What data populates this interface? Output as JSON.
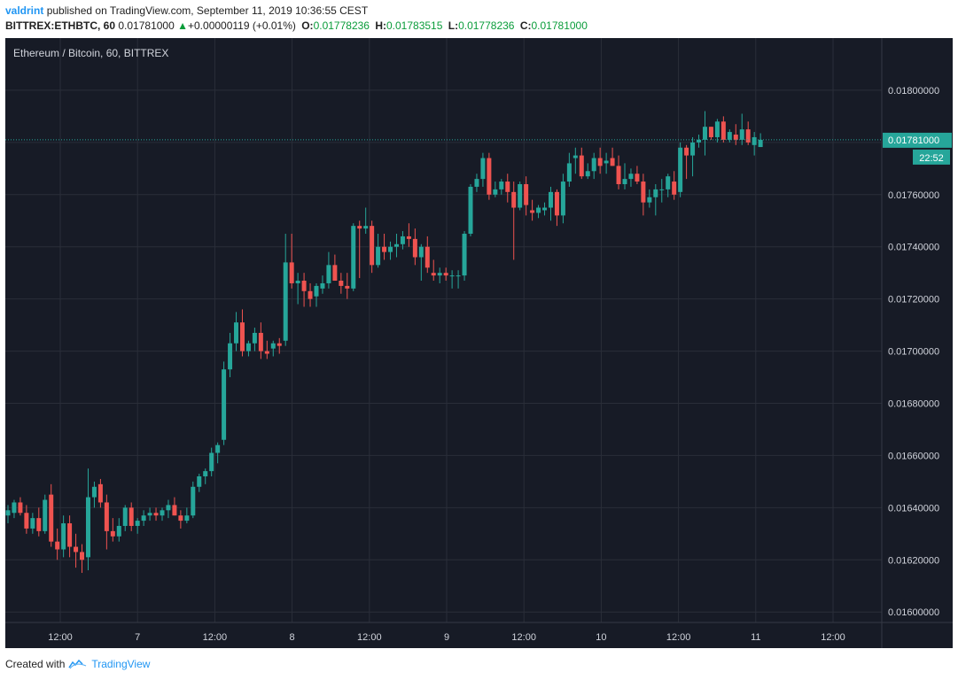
{
  "header": {
    "user": "valdrint",
    "published_text": "published on TradingView.com, September 11, 2019 10:36:55 CEST",
    "symbol": "BITTREX:ETHBTC, 60",
    "last": "0.01781000",
    "change": "+0.00000119 (+0.01%)",
    "o_label": "O:",
    "o_value": "0.01778236",
    "h_label": "H:",
    "h_value": "0.01783515",
    "l_label": "L:",
    "l_value": "0.01778236",
    "c_label": "C:",
    "c_value": "0.01781000"
  },
  "footer": {
    "created_with": "Created with",
    "brand": "TradingView"
  },
  "colors": {
    "background": "#171b26",
    "grid": "#2a2e39",
    "up": "#26a69a",
    "down": "#ef5350",
    "text": "#d1d4dc",
    "price_tag": "#26a69a"
  },
  "chart_data": {
    "type": "candlestick",
    "title": "Ethereum / Bitcoin, 60, BITTREX",
    "ylim": [
      0.01596,
      0.0182
    ],
    "y_ticks": [
      "0.01600000",
      "0.01620000",
      "0.01640000",
      "0.01660000",
      "0.01680000",
      "0.01700000",
      "0.01720000",
      "0.01740000",
      "0.01760000",
      "0.01780000",
      "0.01800000"
    ],
    "x_ticks": [
      "12:00",
      "7",
      "12:00",
      "8",
      "12:00",
      "9",
      "12:00",
      "10",
      "12:00",
      "11",
      "12:00"
    ],
    "last_price": "0.01781000",
    "countdown": "22:52",
    "grid": true,
    "candles": [
      [
        0.01637,
        0.01641,
        0.01634,
        0.01639
      ],
      [
        0.01638,
        0.01643,
        0.01636,
        0.01642
      ],
      [
        0.01642,
        0.01644,
        0.01637,
        0.01638
      ],
      [
        0.01638,
        0.01641,
        0.0163,
        0.01632
      ],
      [
        0.01632,
        0.01638,
        0.0163,
        0.01636
      ],
      [
        0.01636,
        0.0164,
        0.01629,
        0.01631
      ],
      [
        0.01631,
        0.01645,
        0.0163,
        0.01643
      ],
      [
        0.01645,
        0.01649,
        0.01625,
        0.01627
      ],
      [
        0.01627,
        0.01632,
        0.0162,
        0.01624
      ],
      [
        0.01624,
        0.01637,
        0.01621,
        0.01634
      ],
      [
        0.01634,
        0.01637,
        0.01621,
        0.01625
      ],
      [
        0.01625,
        0.0163,
        0.01617,
        0.01623
      ],
      [
        0.01623,
        0.01626,
        0.01615,
        0.0162
      ],
      [
        0.01621,
        0.01655,
        0.01616,
        0.01644
      ],
      [
        0.01644,
        0.0165,
        0.0164,
        0.01648
      ],
      [
        0.01649,
        0.01651,
        0.0164,
        0.01642
      ],
      [
        0.01642,
        0.01645,
        0.01624,
        0.01631
      ],
      [
        0.01631,
        0.01636,
        0.01627,
        0.01629
      ],
      [
        0.01629,
        0.01636,
        0.01627,
        0.01633
      ],
      [
        0.01633,
        0.01641,
        0.01631,
        0.0164
      ],
      [
        0.0164,
        0.01642,
        0.01631,
        0.01633
      ],
      [
        0.01633,
        0.01636,
        0.0163,
        0.01635
      ],
      [
        0.01635,
        0.01639,
        0.01633,
        0.01637
      ],
      [
        0.01637,
        0.0164,
        0.01635,
        0.01638
      ],
      [
        0.01638,
        0.0164,
        0.01635,
        0.01637
      ],
      [
        0.01637,
        0.0164,
        0.01635,
        0.01639
      ],
      [
        0.01639,
        0.01643,
        0.01636,
        0.01641
      ],
      [
        0.01641,
        0.01644,
        0.01637,
        0.01637
      ],
      [
        0.01637,
        0.01639,
        0.01632,
        0.01635
      ],
      [
        0.01635,
        0.0164,
        0.01634,
        0.01637
      ],
      [
        0.01637,
        0.0165,
        0.01636,
        0.01648
      ],
      [
        0.01648,
        0.01653,
        0.01646,
        0.01652
      ],
      [
        0.01652,
        0.01655,
        0.01649,
        0.01654
      ],
      [
        0.01654,
        0.01663,
        0.01652,
        0.01661
      ],
      [
        0.01661,
        0.01665,
        0.01657,
        0.01664
      ],
      [
        0.01666,
        0.01696,
        0.01664,
        0.01693
      ],
      [
        0.01693,
        0.01707,
        0.0169,
        0.01703
      ],
      [
        0.01703,
        0.01715,
        0.017,
        0.01711
      ],
      [
        0.01711,
        0.01716,
        0.01698,
        0.017
      ],
      [
        0.017,
        0.01704,
        0.01698,
        0.01703
      ],
      [
        0.01703,
        0.01709,
        0.017,
        0.01707
      ],
      [
        0.01707,
        0.01711,
        0.01697,
        0.017
      ],
      [
        0.017,
        0.01704,
        0.01697,
        0.01699
      ],
      [
        0.01701,
        0.01704,
        0.01698,
        0.01703
      ],
      [
        0.01703,
        0.01705,
        0.01699,
        0.01702
      ],
      [
        0.01704,
        0.01745,
        0.01702,
        0.01734
      ],
      [
        0.01734,
        0.01745,
        0.01724,
        0.01726
      ],
      [
        0.01726,
        0.0173,
        0.01718,
        0.01727
      ],
      [
        0.01727,
        0.0173,
        0.01717,
        0.01723
      ],
      [
        0.01723,
        0.01726,
        0.01717,
        0.0172
      ],
      [
        0.01721,
        0.01726,
        0.01717,
        0.01725
      ],
      [
        0.01724,
        0.01729,
        0.01722,
        0.01726
      ],
      [
        0.01726,
        0.01738,
        0.01724,
        0.01733
      ],
      [
        0.01733,
        0.01737,
        0.01727,
        0.01727
      ],
      [
        0.01727,
        0.0173,
        0.01722,
        0.01725
      ],
      [
        0.01725,
        0.0173,
        0.0172,
        0.01724
      ],
      [
        0.01724,
        0.01749,
        0.01723,
        0.01748
      ],
      [
        0.01748,
        0.0175,
        0.01728,
        0.01747
      ],
      [
        0.01747,
        0.01755,
        0.01745,
        0.01748
      ],
      [
        0.01748,
        0.0175,
        0.0173,
        0.01733
      ],
      [
        0.01733,
        0.01745,
        0.01732,
        0.0174
      ],
      [
        0.0174,
        0.01745,
        0.01735,
        0.01738
      ],
      [
        0.01738,
        0.01742,
        0.01735,
        0.0174
      ],
      [
        0.0174,
        0.01745,
        0.01736,
        0.01741
      ],
      [
        0.01741,
        0.01746,
        0.01739,
        0.01744
      ],
      [
        0.01744,
        0.01749,
        0.0174,
        0.01743
      ],
      [
        0.01743,
        0.01747,
        0.01733,
        0.01736
      ],
      [
        0.01736,
        0.01741,
        0.01727,
        0.0174
      ],
      [
        0.0174,
        0.01744,
        0.0173,
        0.01732
      ],
      [
        0.0173,
        0.01735,
        0.01727,
        0.01729
      ],
      [
        0.01729,
        0.01732,
        0.01726,
        0.0173
      ],
      [
        0.0173,
        0.01732,
        0.01727,
        0.01729
      ],
      [
        0.01729,
        0.01731,
        0.01724,
        0.01729
      ],
      [
        0.01729,
        0.01731,
        0.01724,
        0.01729
      ],
      [
        0.01729,
        0.01746,
        0.01727,
        0.01745
      ],
      [
        0.01745,
        0.01764,
        0.01744,
        0.01763
      ],
      [
        0.01763,
        0.01768,
        0.01761,
        0.01766
      ],
      [
        0.01766,
        0.01776,
        0.01763,
        0.01774
      ],
      [
        0.01774,
        0.01776,
        0.01758,
        0.0176
      ],
      [
        0.0176,
        0.01765,
        0.01759,
        0.01762
      ],
      [
        0.01762,
        0.01766,
        0.0176,
        0.01765
      ],
      [
        0.01765,
        0.01768,
        0.01757,
        0.01761
      ],
      [
        0.01761,
        0.01765,
        0.01735,
        0.01755
      ],
      [
        0.01755,
        0.01765,
        0.01754,
        0.01764
      ],
      [
        0.01764,
        0.01767,
        0.01752,
        0.01756
      ],
      [
        0.01754,
        0.01758,
        0.0175,
        0.01753
      ],
      [
        0.01753,
        0.01756,
        0.01751,
        0.01755
      ],
      [
        0.01754,
        0.01757,
        0.01752,
        0.01755
      ],
      [
        0.01755,
        0.01763,
        0.0175,
        0.01761
      ],
      [
        0.01761,
        0.01762,
        0.01748,
        0.01752
      ],
      [
        0.01752,
        0.01768,
        0.01749,
        0.01765
      ],
      [
        0.01765,
        0.01776,
        0.01763,
        0.01772
      ],
      [
        0.01774,
        0.01778,
        0.01768,
        0.01775
      ],
      [
        0.01775,
        0.01778,
        0.01766,
        0.01767
      ],
      [
        0.01767,
        0.01772,
        0.01766,
        0.01769
      ],
      [
        0.01769,
        0.01776,
        0.01766,
        0.01774
      ],
      [
        0.01774,
        0.01778,
        0.01768,
        0.01771
      ],
      [
        0.01772,
        0.01776,
        0.01768,
        0.01773
      ],
      [
        0.01774,
        0.01778,
        0.01771,
        0.01771
      ],
      [
        0.01771,
        0.01775,
        0.01762,
        0.01764
      ],
      [
        0.01764,
        0.01772,
        0.01762,
        0.01766
      ],
      [
        0.01766,
        0.0177,
        0.01763,
        0.01768
      ],
      [
        0.01768,
        0.01771,
        0.01764,
        0.01765
      ],
      [
        0.01765,
        0.01768,
        0.01752,
        0.01757
      ],
      [
        0.01757,
        0.01762,
        0.01755,
        0.01759
      ],
      [
        0.01759,
        0.01764,
        0.01752,
        0.01762
      ],
      [
        0.01762,
        0.01766,
        0.01757,
        0.01762
      ],
      [
        0.01762,
        0.01768,
        0.01759,
        0.01767
      ],
      [
        0.01765,
        0.01769,
        0.01758,
        0.0176
      ],
      [
        0.01761,
        0.0178,
        0.01759,
        0.01778
      ],
      [
        0.01778,
        0.01779,
        0.01766,
        0.01775
      ],
      [
        0.01775,
        0.01782,
        0.01767,
        0.0178
      ],
      [
        0.0178,
        0.01783,
        0.01778,
        0.01781
      ],
      [
        0.01781,
        0.01792,
        0.01775,
        0.01786
      ],
      [
        0.01786,
        0.01786,
        0.01781,
        0.01782
      ],
      [
        0.01782,
        0.01789,
        0.0178,
        0.01788
      ],
      [
        0.01788,
        0.0179,
        0.0178,
        0.01781
      ],
      [
        0.01781,
        0.01785,
        0.0178,
        0.01784
      ],
      [
        0.01783,
        0.01787,
        0.01779,
        0.01781
      ],
      [
        0.01781,
        0.01791,
        0.01779,
        0.01785
      ],
      [
        0.01785,
        0.01788,
        0.01779,
        0.0178
      ],
      [
        0.01779,
        0.01784,
        0.01775,
        0.01782
      ],
      [
        0.01778236,
        0.01783515,
        0.01778236,
        0.01781
      ]
    ]
  }
}
